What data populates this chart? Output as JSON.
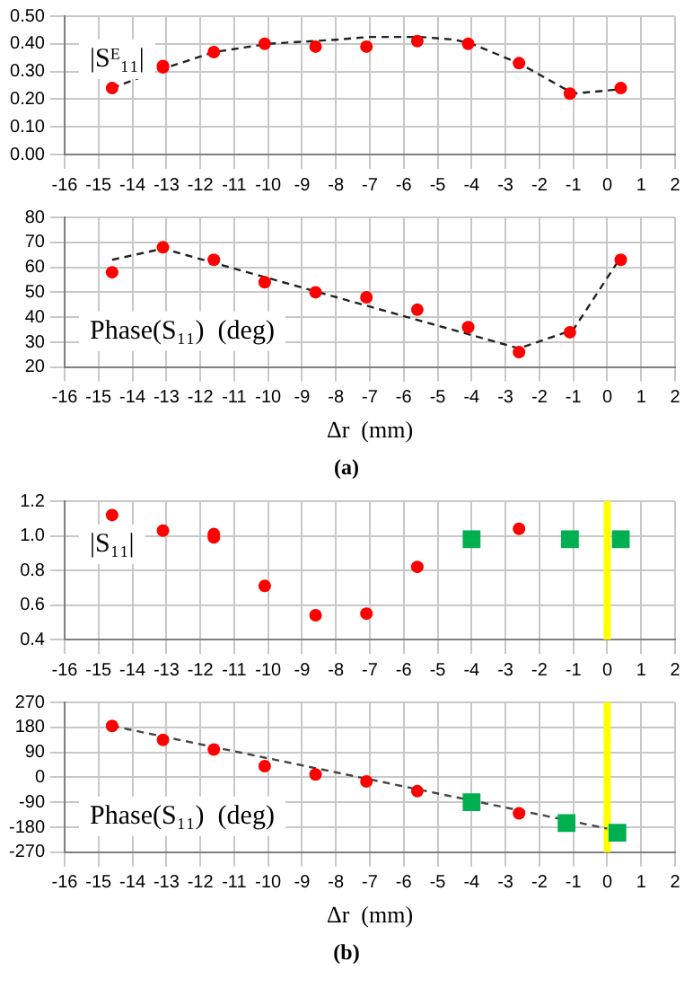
{
  "chart_data": [
    {
      "type": "scatter",
      "xlim": [
        -16,
        2
      ],
      "xticks": [
        -16,
        -15,
        -14,
        -13,
        -12,
        -11,
        -10,
        -9,
        -8,
        -7,
        -6,
        -5,
        -4,
        -3,
        -2,
        -1,
        0,
        1,
        2
      ],
      "ylim": [
        0,
        0.5
      ],
      "yticks": [
        {
          "value": 0,
          "label": "0.00"
        },
        {
          "value": 0.1,
          "label": "0.10"
        },
        {
          "value": 0.2,
          "label": "0.20"
        },
        {
          "value": 0.3,
          "label": "0.30"
        },
        {
          "value": 0.4,
          "label": "0.40"
        },
        {
          "value": 0.5,
          "label": "0.50"
        }
      ],
      "grid": true,
      "legend": false,
      "annotations": [
        "|Sᴱ₁₁|"
      ],
      "series": [
        {
          "type": "line",
          "color": "#222222",
          "marker": "none",
          "line_style": "dashed",
          "x": [
            -14.6,
            -13.1,
            -11.6,
            -10,
            -8,
            -7,
            -5.5,
            -4.5,
            -4,
            -2.6,
            -1,
            0.3
          ],
          "values": [
            0.24,
            0.31,
            0.37,
            0.4,
            0.415,
            0.425,
            0.425,
            0.415,
            0.4,
            0.33,
            0.22,
            0.235
          ]
        },
        {
          "type": "scatter",
          "color": "#ff0000",
          "marker": "circle",
          "x": [
            -14.6,
            -13.1,
            -13.1,
            -11.6,
            -10.1,
            -8.6,
            -7.1,
            -5.6,
            -4.1,
            -2.6,
            -1.1,
            0.4
          ],
          "values": [
            0.24,
            0.32,
            0.315,
            0.37,
            0.4,
            0.39,
            0.39,
            0.41,
            0.4,
            0.33,
            0.22,
            0.24
          ]
        }
      ]
    },
    {
      "type": "scatter",
      "xlabel": "Δr  (mm)",
      "xlim": [
        -16,
        2
      ],
      "xticks": [
        -16,
        -15,
        -14,
        -13,
        -12,
        -11,
        -10,
        -9,
        -8,
        -7,
        -6,
        -5,
        -4,
        -3,
        -2,
        -1,
        0,
        1,
        2
      ],
      "ylim": [
        20,
        80
      ],
      "yticks": [
        20,
        30,
        40,
        50,
        60,
        70,
        80
      ],
      "grid": true,
      "legend": false,
      "annotations": [
        "Phase(S₁₁)  (deg)",
        "(a)"
      ],
      "series": [
        {
          "type": "line",
          "color": "#222222",
          "marker": "none",
          "line_style": "dashed",
          "x": [
            -14.6,
            -13.1,
            -2.6,
            -1,
            0.3
          ],
          "values": [
            63,
            67.5,
            27.5,
            35,
            62
          ]
        },
        {
          "type": "scatter",
          "color": "#ff0000",
          "marker": "circle",
          "x": [
            -14.6,
            -13.1,
            -11.6,
            -10.1,
            -8.6,
            -7.1,
            -5.6,
            -4.1,
            -2.6,
            -1.1,
            0.4
          ],
          "values": [
            58,
            68,
            63,
            54,
            50,
            48,
            43,
            36,
            26,
            34,
            63
          ]
        }
      ]
    },
    {
      "type": "scatter",
      "xlim": [
        -16,
        2
      ],
      "xticks": [
        -16,
        -15,
        -14,
        -13,
        -12,
        -11,
        -10,
        -9,
        -8,
        -7,
        -6,
        -5,
        -4,
        -3,
        -2,
        -1,
        0,
        1,
        2
      ],
      "ylim": [
        0.4,
        1.2
      ],
      "yticks": [
        {
          "value": 0.4,
          "label": "0.4"
        },
        {
          "value": 0.6,
          "label": "0.6"
        },
        {
          "value": 0.8,
          "label": "0.8"
        },
        {
          "value": 1,
          "label": "1.0"
        },
        {
          "value": 1.2,
          "label": "1.2"
        }
      ],
      "grid": true,
      "legend": false,
      "annotations": [
        "|S₁₁|"
      ],
      "ref_lines": [
        {
          "axis": "x",
          "value": 0,
          "color": "#ffff00"
        }
      ],
      "series": [
        {
          "type": "scatter",
          "color": "#ff0000",
          "marker": "circle",
          "x": [
            -14.6,
            -13.1,
            -11.6,
            -11.6,
            -10.1,
            -8.6,
            -7.1,
            -5.6,
            -2.6
          ],
          "values": [
            1.12,
            1.03,
            1.01,
            0.99,
            0.71,
            0.54,
            0.55,
            0.82,
            1.04
          ]
        },
        {
          "type": "scatter",
          "color": "#00b050",
          "marker": "square",
          "x": [
            -4,
            -1.1,
            0.4
          ],
          "values": [
            0.98,
            0.98,
            0.98
          ]
        }
      ]
    },
    {
      "type": "scatter",
      "xlabel": "Δr  (mm)",
      "xlim": [
        -16,
        2
      ],
      "xticks": [
        -16,
        -15,
        -14,
        -13,
        -12,
        -11,
        -10,
        -9,
        -8,
        -7,
        -6,
        -5,
        -4,
        -3,
        -2,
        -1,
        0,
        1,
        2
      ],
      "ylim": [
        -270,
        270
      ],
      "yticks": [
        -270,
        -180,
        -90,
        0,
        90,
        180,
        270
      ],
      "grid": true,
      "legend": false,
      "annotations": [
        "Phase(S₁₁)  (deg)",
        "(b)"
      ],
      "ref_lines": [
        {
          "axis": "x",
          "value": 0,
          "color": "#ffff00"
        }
      ],
      "series": [
        {
          "type": "line",
          "color": "#444444",
          "marker": "none",
          "line_style": "dashed",
          "x": [
            -14.6,
            0
          ],
          "values": [
            185,
            -185
          ]
        },
        {
          "type": "scatter",
          "color": "#ff0000",
          "marker": "circle",
          "x": [
            -14.6,
            -13.1,
            -11.6,
            -10.1,
            -8.6,
            -7.1,
            -5.6,
            -2.6
          ],
          "values": [
            185,
            135,
            100,
            40,
            10,
            -15,
            -50,
            -130
          ]
        },
        {
          "type": "scatter",
          "color": "#00b050",
          "marker": "square",
          "x": [
            -4,
            -1.2,
            0.3
          ],
          "values": [
            -90,
            -165,
            -200
          ]
        }
      ]
    }
  ]
}
